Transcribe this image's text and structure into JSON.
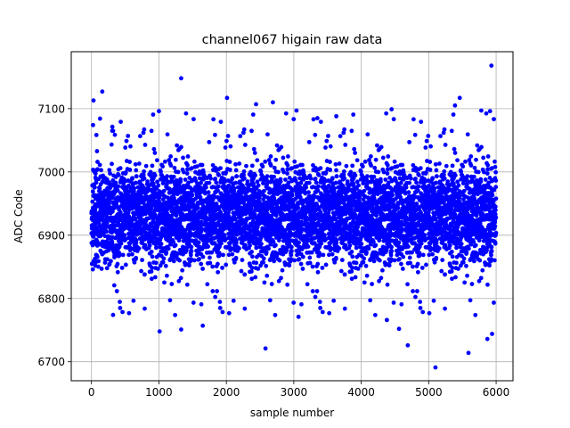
{
  "chart_data": {
    "type": "scatter",
    "title": "channel067 higain raw data",
    "xlabel": "sample number",
    "ylabel": "ADC Code",
    "xlim": [
      -300,
      6250
    ],
    "ylim": [
      6670,
      7190
    ],
    "xticks": [
      0,
      1000,
      2000,
      3000,
      4000,
      5000,
      6000
    ],
    "yticks": [
      6700,
      6800,
      6900,
      7000,
      7100
    ],
    "grid": true,
    "marker_color": "#0000ff",
    "n_samples": 6000,
    "central_band": [
      6870,
      7000
    ],
    "central_mean": 6933,
    "visible_outliers": [
      {
        "x": 30,
        "y": 7113
      },
      {
        "x": 160,
        "y": 7127
      },
      {
        "x": 1000,
        "y": 7096
      },
      {
        "x": 1330,
        "y": 7148
      },
      {
        "x": 2010,
        "y": 7117
      },
      {
        "x": 2440,
        "y": 7107
      },
      {
        "x": 2690,
        "y": 7110
      },
      {
        "x": 3040,
        "y": 7097
      },
      {
        "x": 3350,
        "y": 7085
      },
      {
        "x": 3630,
        "y": 7088
      },
      {
        "x": 4450,
        "y": 7099
      },
      {
        "x": 5460,
        "y": 7117
      },
      {
        "x": 5390,
        "y": 7105
      },
      {
        "x": 5780,
        "y": 7097
      },
      {
        "x": 5930,
        "y": 7168
      },
      {
        "x": 5910,
        "y": 7096
      },
      {
        "x": 1010,
        "y": 6748
      },
      {
        "x": 1330,
        "y": 6751
      },
      {
        "x": 1650,
        "y": 6757
      },
      {
        "x": 2580,
        "y": 6721
      },
      {
        "x": 3070,
        "y": 6771
      },
      {
        "x": 4560,
        "y": 6752
      },
      {
        "x": 4690,
        "y": 6726
      },
      {
        "x": 5100,
        "y": 6691
      },
      {
        "x": 5590,
        "y": 6714
      },
      {
        "x": 5870,
        "y": 6736
      },
      {
        "x": 5940,
        "y": 6744
      },
      {
        "x": 320,
        "y": 6774
      },
      {
        "x": 4380,
        "y": 6766
      }
    ]
  }
}
